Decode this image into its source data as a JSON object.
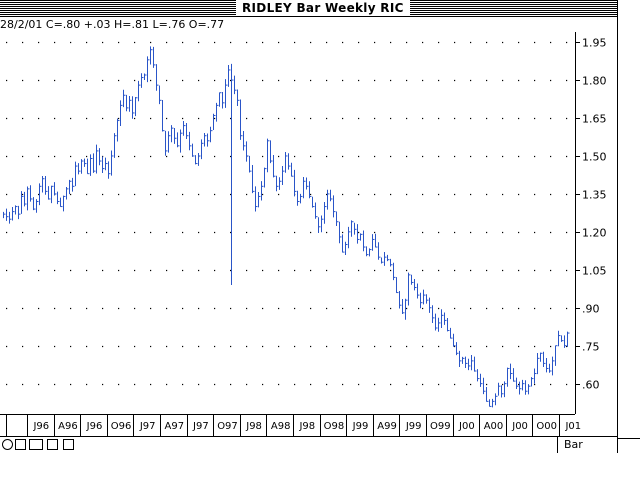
{
  "window": {
    "title": "RIDLEY Bar Weekly RIC"
  },
  "readout": "28/2/01 C=.80 +.03 H=.81 L=.76 O=.77",
  "footer": {
    "chart_type_label": "Bar"
  },
  "colors": {
    "bars": "#2a55c8",
    "grid": "#000000",
    "axis": "#000000"
  },
  "chart_data": {
    "type": "bar",
    "x_tick_labels": [
      "J96",
      "A96",
      "J96",
      "O96",
      "J97",
      "A97",
      "J97",
      "O97",
      "J98",
      "A98",
      "J98",
      "O98",
      "J99",
      "A99",
      "J99",
      "O99",
      "J00",
      "A00",
      "J00",
      "O00",
      "J01"
    ],
    "y_tick_labels": [
      "1.95",
      "1.80",
      "1.65",
      "1.50",
      "1.35",
      "1.20",
      "1.05",
      ".90",
      ".75",
      ".60"
    ],
    "ylim": [
      0.48,
      1.99
    ],
    "grid": true,
    "series": [
      {
        "values": [
          1.27,
          1.26,
          1.25,
          1.28,
          1.3,
          1.27,
          1.34,
          1.31,
          1.37,
          1.33,
          1.29,
          1.32,
          1.38,
          1.41,
          1.36,
          1.33,
          1.38,
          1.35,
          1.32,
          1.3,
          1.34,
          1.37,
          1.4,
          1.38,
          1.46,
          1.44,
          1.48,
          1.47,
          1.43,
          1.49,
          1.44,
          1.52,
          1.48,
          1.45,
          1.47,
          1.43,
          1.5,
          1.58,
          1.64,
          1.7,
          1.74,
          1.69,
          1.72,
          1.67,
          1.73,
          1.78,
          1.81,
          1.82,
          1.88,
          1.92,
          1.86,
          1.78,
          1.72,
          1.6,
          1.52,
          1.58,
          1.61,
          1.57,
          1.54,
          1.59,
          1.62,
          1.58,
          1.54,
          1.5,
          1.47,
          1.5,
          1.55,
          1.58,
          1.56,
          1.6,
          1.66,
          1.7,
          1.75,
          1.71,
          1.78,
          1.84,
          1.8,
          1.76,
          1.72,
          1.58,
          1.54,
          1.5,
          1.44,
          1.36,
          1.3,
          1.34,
          1.38,
          1.45,
          1.56,
          1.48,
          1.42,
          1.38,
          1.4,
          1.44,
          1.5,
          1.46,
          1.42,
          1.36,
          1.32,
          1.34,
          1.4,
          1.38,
          1.34,
          1.3,
          1.26,
          1.22,
          1.25,
          1.3,
          1.35,
          1.33,
          1.28,
          1.24,
          1.18,
          1.12,
          1.15,
          1.2,
          1.24,
          1.21,
          1.17,
          1.19,
          1.14,
          1.11,
          1.13,
          1.17,
          1.14,
          1.1,
          1.08,
          1.1,
          1.09,
          1.07,
          1.02,
          0.96,
          0.91,
          0.88,
          0.93,
          1.03,
          1.0,
          0.98,
          0.95,
          0.92,
          0.95,
          0.93,
          0.9,
          0.86,
          0.82,
          0.84,
          0.87,
          0.85,
          0.81,
          0.78,
          0.75,
          0.72,
          0.69,
          0.7,
          0.68,
          0.67,
          0.69,
          0.65,
          0.62,
          0.6,
          0.57,
          0.53,
          0.51,
          0.53,
          0.55,
          0.59,
          0.56,
          0.6,
          0.66,
          0.64,
          0.61,
          0.59,
          0.58,
          0.6,
          0.57,
          0.59,
          0.62,
          0.64,
          0.7,
          0.72,
          0.68,
          0.66,
          0.65,
          0.69,
          0.75,
          0.79,
          0.77,
          0.75,
          0.8
        ]
      }
    ],
    "annotations": [
      "dip to .99 in O97"
    ]
  }
}
